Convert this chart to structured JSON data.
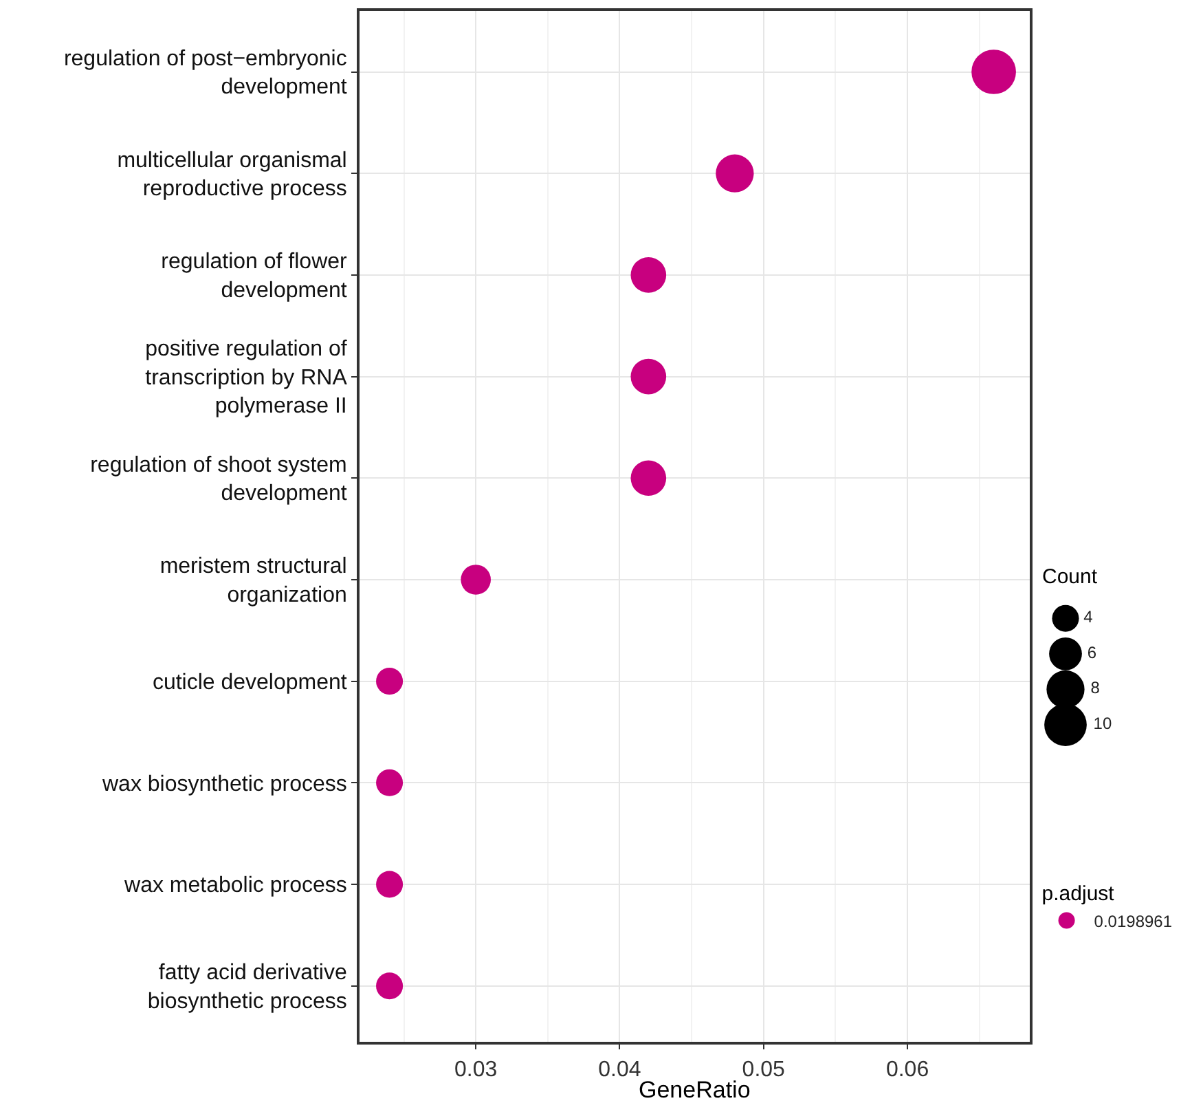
{
  "chart_data": {
    "type": "bubble",
    "xlabel": "GeneRatio",
    "legend_title": "Count",
    "clabel": "p.adjust",
    "categories": [
      "regulation of post−embryonic\ndevelopment",
      "multicellular organismal\nreproductive process",
      "regulation of flower\ndevelopment",
      "positive regulation of\ntranscription by RNA\npolymerase II",
      "regulation of shoot system\ndevelopment",
      "meristem structural\norganization",
      "cuticle development",
      "wax biosynthetic process",
      "wax metabolic process",
      "fatty acid derivative\nbiosynthetic process"
    ],
    "orientation": "horizontal",
    "series": [
      {
        "name": "0.0198961",
        "color": "#c8007f",
        "values": [
          0.066,
          0.048,
          0.042,
          0.042,
          0.042,
          0.03,
          0.024,
          0.024,
          0.024,
          0.024
        ],
        "sizes": [
          11,
          8,
          7,
          7,
          7,
          5,
          4,
          4,
          4,
          4
        ]
      }
    ],
    "size_legend": [
      4,
      6,
      8,
      10
    ],
    "legend": "right",
    "xlim": [
      0.0219,
      0.0685
    ],
    "xticks": [
      0.03,
      0.04,
      0.05,
      0.06
    ],
    "grid": true,
    "marker": "circle"
  }
}
